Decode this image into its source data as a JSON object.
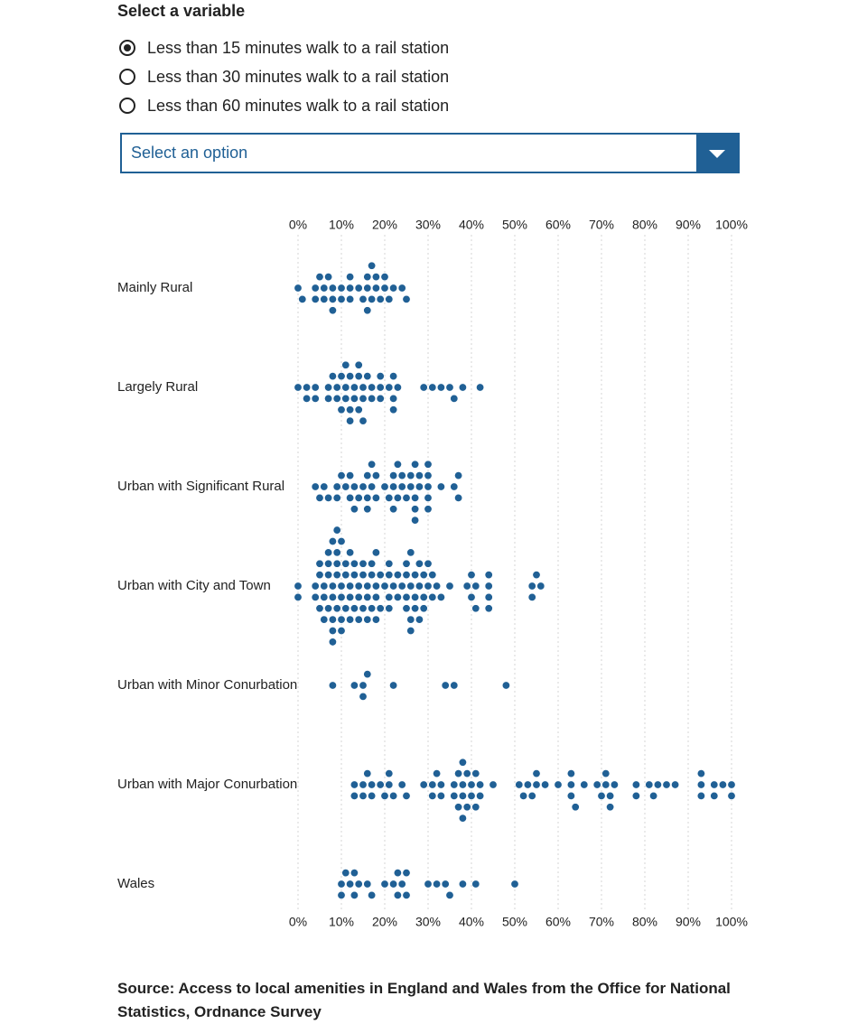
{
  "controls": {
    "heading": "Select a variable",
    "options": [
      {
        "label": "Less than 15 minutes walk to a rail station",
        "checked": true
      },
      {
        "label": "Less than 30 minutes walk to a rail station",
        "checked": false
      },
      {
        "label": "Less than 60 minutes walk to a rail station",
        "checked": false
      }
    ],
    "select_placeholder": "Select an option"
  },
  "chart_data": {
    "type": "scatter",
    "subtype": "beeswarm",
    "xlim": [
      0,
      100
    ],
    "x_ticks": [
      "0%",
      "10%",
      "20%",
      "30%",
      "40%",
      "50%",
      "60%",
      "70%",
      "80%",
      "90%",
      "100%"
    ],
    "grid": "vertical dotted",
    "point_color": "#206095",
    "series": [
      {
        "name": "Mainly Rural",
        "values": [
          0,
          1,
          4,
          4,
          5,
          6,
          6,
          7,
          8,
          8,
          8,
          10,
          10,
          12,
          12,
          12,
          14,
          15,
          16,
          16,
          16,
          17,
          17,
          18,
          18,
          19,
          20,
          20,
          21,
          22,
          24,
          25
        ]
      },
      {
        "name": "Largely Rural",
        "values": [
          0,
          2,
          2,
          4,
          4,
          7,
          7,
          8,
          9,
          9,
          10,
          10,
          11,
          11,
          11,
          12,
          12,
          12,
          13,
          13,
          14,
          14,
          14,
          15,
          15,
          15,
          16,
          17,
          17,
          19,
          19,
          19,
          21,
          22,
          22,
          22,
          23,
          29,
          31,
          33,
          35,
          36,
          38,
          42
        ]
      },
      {
        "name": "Urban with Significant Rural",
        "values": [
          4,
          5,
          6,
          7,
          9,
          9,
          10,
          11,
          12,
          12,
          13,
          13,
          14,
          15,
          16,
          16,
          16,
          17,
          17,
          18,
          18,
          20,
          21,
          22,
          22,
          22,
          23,
          23,
          24,
          24,
          25,
          26,
          26,
          27,
          27,
          27,
          27,
          28,
          28,
          30,
          30,
          30,
          30,
          30,
          33,
          36,
          37,
          37
        ]
      },
      {
        "name": "Urban with City and Town",
        "values": [
          0,
          0,
          4,
          4,
          5,
          5,
          5,
          6,
          6,
          6,
          7,
          7,
          7,
          7,
          8,
          8,
          8,
          8,
          8,
          8,
          9,
          9,
          9,
          9,
          9,
          10,
          10,
          10,
          10,
          10,
          11,
          11,
          11,
          12,
          12,
          12,
          12,
          13,
          13,
          13,
          14,
          14,
          14,
          15,
          15,
          15,
          16,
          16,
          16,
          17,
          17,
          17,
          18,
          18,
          18,
          18,
          19,
          19,
          20,
          21,
          21,
          21,
          21,
          22,
          23,
          23,
          24,
          25,
          25,
          25,
          25,
          26,
          26,
          26,
          26,
          27,
          27,
          27,
          28,
          28,
          28,
          29,
          29,
          29,
          30,
          30,
          31,
          31,
          32,
          33,
          35,
          39,
          40,
          40,
          41,
          41,
          44,
          44,
          44,
          44,
          54,
          54,
          55,
          56
        ]
      },
      {
        "name": "Urban with Minor Conurbation",
        "values": [
          8,
          13,
          15,
          15,
          16,
          22,
          34,
          36,
          48
        ]
      },
      {
        "name": "Urban with Major Conurbation",
        "values": [
          13,
          13,
          15,
          15,
          16,
          17,
          17,
          19,
          20,
          21,
          21,
          22,
          24,
          25,
          29,
          31,
          31,
          32,
          33,
          33,
          36,
          36,
          37,
          37,
          38,
          38,
          38,
          38,
          39,
          39,
          40,
          40,
          41,
          41,
          42,
          42,
          45,
          51,
          52,
          53,
          54,
          55,
          55,
          57,
          60,
          63,
          63,
          63,
          64,
          66,
          69,
          70,
          71,
          71,
          72,
          72,
          73,
          78,
          78,
          81,
          82,
          83,
          85,
          87,
          93,
          93,
          93,
          96,
          96,
          98,
          100,
          100
        ]
      },
      {
        "name": "Wales",
        "values": [
          10,
          10,
          11,
          12,
          13,
          13,
          14,
          16,
          17,
          20,
          22,
          23,
          23,
          24,
          25,
          25,
          30,
          32,
          34,
          35,
          38,
          41,
          50
        ]
      }
    ]
  },
  "source_text": "Source: Access to local amenities in England and Wales from the Office for National Statistics, Ordnance Survey"
}
